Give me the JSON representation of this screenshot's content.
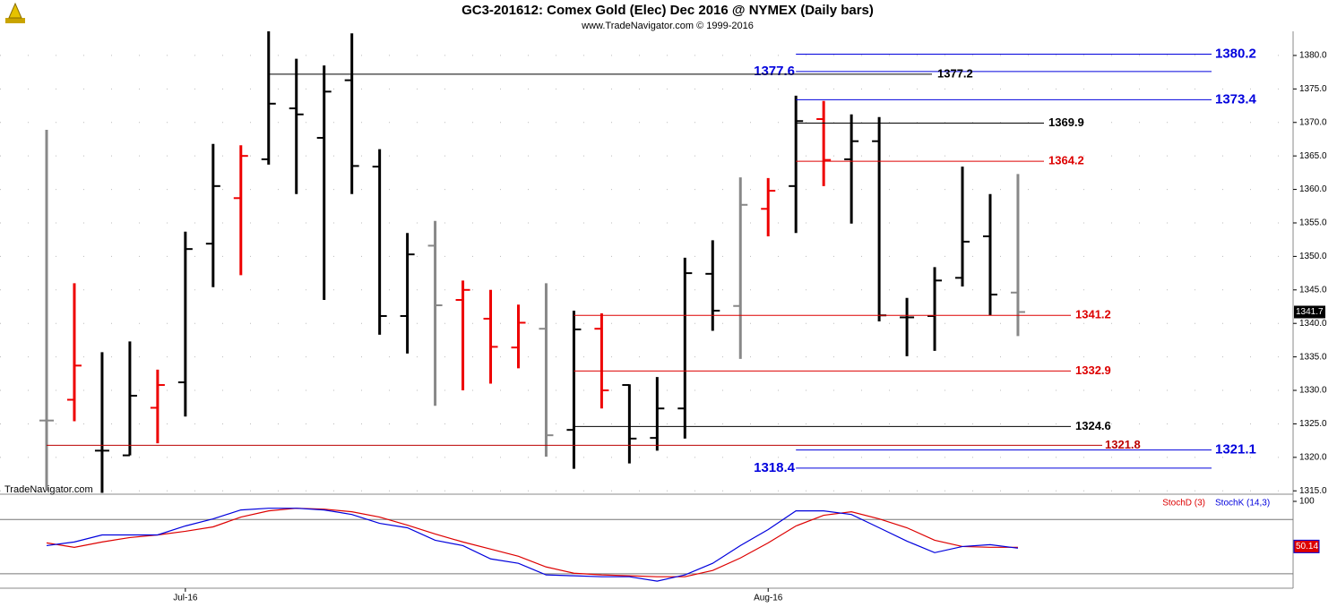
{
  "chart_data": [
    {
      "type": "ohlc",
      "title": "GC3-201612:  Comex Gold (Elec) Dec 2016 @ NYMEX  (Daily bars)",
      "subtitle": "www.TradeNavigator.com © 1999-2016",
      "watermark": "TradeNavigator.com",
      "categories": [
        null,
        null,
        null,
        null,
        null,
        "Jul-16",
        null,
        null,
        null,
        null,
        null,
        null,
        null,
        null,
        null,
        null,
        null,
        null,
        null,
        null,
        null,
        null,
        null,
        null,
        null,
        null,
        "Aug-16",
        null,
        null,
        null,
        null,
        null,
        null,
        null,
        null,
        null
      ],
      "series": [
        {
          "name": "Open",
          "values": [
            1325.5,
            1328.6,
            1321.0,
            1320.3,
            1327.4,
            1331.2,
            1351.9,
            1358.7,
            1364.5,
            1372.1,
            1367.7,
            1376.3,
            1363.4,
            1341.1,
            1351.6,
            1343.5,
            1340.7,
            1336.4,
            1339.2,
            1324.1,
            1339.2,
            1330.8,
            1322.9,
            1327.3,
            1347.4,
            1342.6,
            1357.1,
            1360.5,
            1370.5,
            1364.5,
            1367.2,
            1340.9,
            1341.1,
            1346.8,
            1353.0,
            1344.6
          ]
        },
        {
          "name": "High",
          "values": [
            1368.9,
            1346.0,
            1335.7,
            1337.3,
            1333.1,
            1353.7,
            1366.8,
            1366.6,
            1383.6,
            1379.5,
            1378.5,
            1383.3,
            1366.0,
            1353.5,
            1355.3,
            1346.4,
            1345.0,
            1342.8,
            1346.0,
            1341.9,
            1341.5,
            1330.9,
            1332.0,
            1349.8,
            1352.4,
            1361.8,
            1361.7,
            1374.0,
            1373.2,
            1371.2,
            1370.8,
            1343.8,
            1348.4,
            1363.4,
            1359.3,
            1362.3
          ]
        },
        {
          "name": "Low",
          "values": [
            1315.0,
            1325.4,
            1314.7,
            1320.3,
            1322.1,
            1326.1,
            1345.4,
            1347.2,
            1363.7,
            1359.3,
            1343.5,
            1359.3,
            1338.3,
            1335.5,
            1327.7,
            1330.0,
            1331.0,
            1333.3,
            1320.1,
            1318.3,
            1327.3,
            1319.1,
            1321.0,
            1322.8,
            1338.9,
            1334.7,
            1353.0,
            1353.5,
            1360.5,
            1354.9,
            1340.3,
            1335.1,
            1335.9,
            1345.5,
            1341.2,
            1338.1
          ]
        },
        {
          "name": "Close",
          "values": [
            1325.5,
            1333.7,
            1321.0,
            1329.2,
            1330.8,
            1351.1,
            1360.5,
            1365.0,
            1372.8,
            1371.2,
            1374.6,
            1363.5,
            1341.1,
            1350.3,
            1342.7,
            1345.0,
            1336.5,
            1340.1,
            1323.3,
            1339.1,
            1330.0,
            1322.8,
            1327.3,
            1347.5,
            1341.9,
            1357.7,
            1359.8,
            1370.2,
            1364.4,
            1367.2,
            1341.2,
            1340.9,
            1346.4,
            1352.2,
            1344.3,
            1341.7
          ]
        }
      ],
      "bar_colors": [
        "#888888",
        "#ee0000",
        "#000000",
        "#000000",
        "#ee0000",
        "#000000",
        "#000000",
        "#ee0000",
        "#000000",
        "#000000",
        "#000000",
        "#000000",
        "#000000",
        "#000000",
        "#888888",
        "#ee0000",
        "#ee0000",
        "#ee0000",
        "#888888",
        "#000000",
        "#ee0000",
        "#000000",
        "#000000",
        "#000000",
        "#000000",
        "#888888",
        "#ee0000",
        "#000000",
        "#ee0000",
        "#000000",
        "#000000",
        "#000000",
        "#000000",
        "#000000",
        "#000000",
        "#888888"
      ],
      "levels": [
        {
          "value": 1380.2,
          "color": "#0000dd"
        },
        {
          "value": 1377.6,
          "color": "#0000dd"
        },
        {
          "value": 1377.2,
          "color": "#000000"
        },
        {
          "value": 1373.4,
          "color": "#0000dd"
        },
        {
          "value": 1369.9,
          "color": "#000000"
        },
        {
          "value": 1364.2,
          "color": "#dd0000"
        },
        {
          "value": 1341.2,
          "color": "#dd0000"
        },
        {
          "value": 1332.9,
          "color": "#dd0000"
        },
        {
          "value": 1324.6,
          "color": "#000000"
        },
        {
          "value": 1321.8,
          "color": "#bb0000"
        },
        {
          "value": 1321.1,
          "color": "#0000dd"
        },
        {
          "value": 1318.4,
          "color": "#0000dd"
        }
      ],
      "last_price": {
        "value": 1341.7,
        "label": "1341.7"
      },
      "ylim": [
        1314.5,
        1383.6
      ],
      "yticks": [
        {
          "value": 1315,
          "label": "1315.0"
        },
        {
          "value": 1320,
          "label": "1320.0"
        },
        {
          "value": 1325,
          "label": "1325.0"
        },
        {
          "value": 1330,
          "label": "1330.0"
        },
        {
          "value": 1335,
          "label": "1335.0"
        },
        {
          "value": 1340,
          "label": "1340.0"
        },
        {
          "value": 1345,
          "label": "1345.0"
        },
        {
          "value": 1350,
          "label": "1350.0"
        },
        {
          "value": 1355,
          "label": "1355.0"
        },
        {
          "value": 1360,
          "label": "1360.0"
        },
        {
          "value": 1365,
          "label": "1365.0"
        },
        {
          "value": 1370,
          "label": "1370.0"
        },
        {
          "value": 1375,
          "label": "1375.0"
        },
        {
          "value": 1380,
          "label": "1380.0"
        }
      ],
      "grid": true
    },
    {
      "type": "line",
      "series": [
        {
          "name": "StochD (3)",
          "color": "#dd0000",
          "values": [
            54.1,
            49.2,
            55.1,
            60.0,
            62.9,
            66.9,
            71.8,
            82.6,
            89.5,
            92.4,
            91.4,
            88.5,
            82.6,
            73.7,
            63.9,
            55.1,
            47.2,
            39.3,
            27.5,
            20.6,
            18.7,
            17.7,
            16.7,
            16.7,
            23.6,
            37.4,
            54.1,
            72.8,
            84.6,
            88.5,
            80.6,
            70.8,
            57.0,
            50.1,
            49.2,
            49.2
          ]
        },
        {
          "name": "StochK (14,3)",
          "color": "#0000dd",
          "values": [
            51.1,
            55.1,
            62.9,
            62.9,
            62.9,
            72.8,
            80.6,
            90.5,
            92.4,
            92.4,
            90.5,
            85.5,
            75.7,
            70.8,
            57.0,
            51.1,
            36.4,
            31.5,
            18.7,
            17.7,
            16.7,
            16.7,
            11.8,
            18.7,
            31.5,
            51.1,
            68.8,
            89.5,
            89.5,
            85.5,
            70.8,
            56.0,
            43.3,
            50.1,
            52.1,
            48.2
          ]
        }
      ],
      "levels": [
        80,
        20
      ],
      "last_value": 50.14,
      "ylim": [
        4,
        100
      ],
      "yticks": [
        100
      ]
    }
  ]
}
